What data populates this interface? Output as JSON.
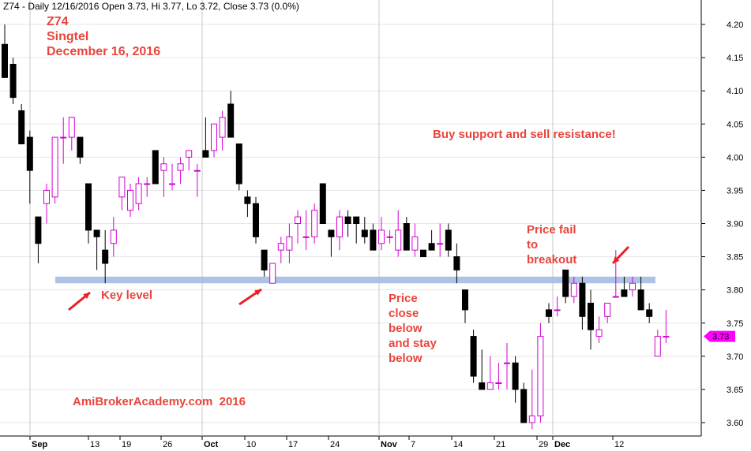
{
  "header": {
    "summary": "Z74 - Daily 12/16/2016 Open 3.73, Hi 3.77, Lo 3.72, Close 3.73 (0.0%)"
  },
  "annotations": {
    "ticker": "Z74",
    "company": "Singtel",
    "date": "December 16, 2016",
    "strategy": "Buy support and sell resistance!",
    "key_level": "Key level",
    "price_fail": "Price fail\nto\nbreakout",
    "close_below": "Price\nclose\nbelow\nand stay\nbelow",
    "watermark": "AmiBrokerAcademy.com  2016"
  },
  "last_price_label": "3.73",
  "colors": {
    "up_candle": "#d400d4",
    "down_candle": "#000000",
    "support_band": "#9fb7e0",
    "annotation": "#e8453c",
    "arrow": "#e8202a",
    "last_price_tag": "#ff00ff"
  },
  "chart_data": {
    "type": "candlestick",
    "title": "Z74 - Daily 12/16/2016 Open 3.73, Hi 3.77, Lo 3.72, Close 3.73 (0.0%)",
    "ylim": [
      3.58,
      4.21
    ],
    "y_ticks": [
      4.2,
      4.15,
      4.1,
      4.05,
      4.0,
      3.95,
      3.9,
      3.85,
      3.8,
      3.75,
      3.7,
      3.65,
      3.6
    ],
    "x_tick_labels": [
      "Sep",
      "13",
      "19",
      "26",
      "Oct",
      "10",
      "17",
      "24",
      "Nov",
      "7",
      "14",
      "21",
      "29",
      "Dec",
      "12"
    ],
    "support_level": [
      3.81,
      3.82
    ],
    "candles": [
      {
        "o": 4.17,
        "h": 4.2,
        "l": 4.12,
        "c": 4.12
      },
      {
        "o": 4.14,
        "h": 4.15,
        "l": 4.08,
        "c": 4.09
      },
      {
        "o": 4.07,
        "h": 4.08,
        "l": 4.02,
        "c": 4.02
      },
      {
        "o": 4.03,
        "h": 4.04,
        "l": 3.93,
        "c": 3.98
      },
      {
        "o": 3.91,
        "h": 3.91,
        "l": 3.84,
        "c": 3.87
      },
      {
        "o": 3.93,
        "h": 3.96,
        "l": 3.9,
        "c": 3.95
      },
      {
        "o": 3.94,
        "h": 4.03,
        "l": 3.93,
        "c": 4.03
      },
      {
        "o": 4.03,
        "h": 4.06,
        "l": 3.99,
        "c": 4.03
      },
      {
        "o": 4.03,
        "h": 4.06,
        "l": 4.01,
        "c": 4.06
      },
      {
        "o": 4.03,
        "h": 4.03,
        "l": 3.99,
        "c": 4.0
      },
      {
        "o": 3.96,
        "h": 3.96,
        "l": 3.87,
        "c": 3.89
      },
      {
        "o": 3.89,
        "h": 3.89,
        "l": 3.83,
        "c": 3.88
      },
      {
        "o": 3.86,
        "h": 3.89,
        "l": 3.81,
        "c": 3.84
      },
      {
        "o": 3.87,
        "h": 3.91,
        "l": 3.85,
        "c": 3.89
      },
      {
        "o": 3.94,
        "h": 3.97,
        "l": 3.92,
        "c": 3.97
      },
      {
        "o": 3.92,
        "h": 3.96,
        "l": 3.91,
        "c": 3.95
      },
      {
        "o": 3.93,
        "h": 3.97,
        "l": 3.92,
        "c": 3.96
      },
      {
        "o": 3.96,
        "h": 3.97,
        "l": 3.94,
        "c": 3.96
      },
      {
        "o": 4.01,
        "h": 4.01,
        "l": 3.96,
        "c": 3.96
      },
      {
        "o": 3.98,
        "h": 4.0,
        "l": 3.94,
        "c": 3.99
      },
      {
        "o": 3.96,
        "h": 3.99,
        "l": 3.95,
        "c": 3.96
      },
      {
        "o": 3.98,
        "h": 4.0,
        "l": 3.96,
        "c": 3.99
      },
      {
        "o": 4.0,
        "h": 4.01,
        "l": 3.98,
        "c": 4.01
      },
      {
        "o": 3.98,
        "h": 3.99,
        "l": 3.94,
        "c": 3.98
      },
      {
        "o": 4.01,
        "h": 4.06,
        "l": 4.0,
        "c": 4.0
      },
      {
        "o": 4.01,
        "h": 4.05,
        "l": 4.0,
        "c": 4.05
      },
      {
        "o": 4.03,
        "h": 4.07,
        "l": 4.01,
        "c": 4.06
      },
      {
        "o": 4.08,
        "h": 4.1,
        "l": 4.03,
        "c": 4.03
      },
      {
        "o": 4.02,
        "h": 4.02,
        "l": 3.95,
        "c": 3.96
      },
      {
        "o": 3.94,
        "h": 3.95,
        "l": 3.91,
        "c": 3.93
      },
      {
        "o": 3.93,
        "h": 3.94,
        "l": 3.87,
        "c": 3.88
      },
      {
        "o": 3.86,
        "h": 3.86,
        "l": 3.82,
        "c": 3.83
      },
      {
        "o": 3.81,
        "h": 3.84,
        "l": 3.81,
        "c": 3.84
      },
      {
        "o": 3.86,
        "h": 3.88,
        "l": 3.84,
        "c": 3.87
      },
      {
        "o": 3.86,
        "h": 3.9,
        "l": 3.84,
        "c": 3.88
      },
      {
        "o": 3.9,
        "h": 3.92,
        "l": 3.87,
        "c": 3.91
      },
      {
        "o": 3.88,
        "h": 3.92,
        "l": 3.86,
        "c": 3.88
      },
      {
        "o": 3.88,
        "h": 3.93,
        "l": 3.87,
        "c": 3.92
      },
      {
        "o": 3.96,
        "h": 3.96,
        "l": 3.9,
        "c": 3.9
      },
      {
        "o": 3.89,
        "h": 3.89,
        "l": 3.85,
        "c": 3.88
      },
      {
        "o": 3.88,
        "h": 3.92,
        "l": 3.86,
        "c": 3.91
      },
      {
        "o": 3.91,
        "h": 3.92,
        "l": 3.88,
        "c": 3.9
      },
      {
        "o": 3.91,
        "h": 3.91,
        "l": 3.87,
        "c": 3.9
      },
      {
        "o": 3.89,
        "h": 3.91,
        "l": 3.87,
        "c": 3.88
      },
      {
        "o": 3.89,
        "h": 3.9,
        "l": 3.86,
        "c": 3.86
      },
      {
        "o": 3.87,
        "h": 3.91,
        "l": 3.86,
        "c": 3.89
      },
      {
        "o": 3.88,
        "h": 3.89,
        "l": 3.87,
        "c": 3.88
      },
      {
        "o": 3.86,
        "h": 3.92,
        "l": 3.85,
        "c": 3.89
      },
      {
        "o": 3.9,
        "h": 3.91,
        "l": 3.86,
        "c": 3.86
      },
      {
        "o": 3.86,
        "h": 3.9,
        "l": 3.85,
        "c": 3.88
      },
      {
        "o": 3.86,
        "h": 3.86,
        "l": 3.85,
        "c": 3.85
      },
      {
        "o": 3.87,
        "h": 3.89,
        "l": 3.86,
        "c": 3.86
      },
      {
        "o": 3.87,
        "h": 3.9,
        "l": 3.85,
        "c": 3.87
      },
      {
        "o": 3.89,
        "h": 3.9,
        "l": 3.85,
        "c": 3.86
      },
      {
        "o": 3.85,
        "h": 3.87,
        "l": 3.81,
        "c": 3.83
      },
      {
        "o": 3.8,
        "h": 3.8,
        "l": 3.75,
        "c": 3.77
      },
      {
        "o": 3.73,
        "h": 3.74,
        "l": 3.66,
        "c": 3.67
      },
      {
        "o": 3.66,
        "h": 3.71,
        "l": 3.65,
        "c": 3.65
      },
      {
        "o": 3.65,
        "h": 3.7,
        "l": 3.65,
        "c": 3.66
      },
      {
        "o": 3.66,
        "h": 3.69,
        "l": 3.65,
        "c": 3.66
      },
      {
        "o": 3.69,
        "h": 3.72,
        "l": 3.65,
        "c": 3.69
      },
      {
        "o": 3.69,
        "h": 3.7,
        "l": 3.63,
        "c": 3.65
      },
      {
        "o": 3.65,
        "h": 3.66,
        "l": 3.6,
        "c": 3.6
      },
      {
        "o": 3.6,
        "h": 3.68,
        "l": 3.59,
        "c": 3.61
      },
      {
        "o": 3.61,
        "h": 3.75,
        "l": 3.6,
        "c": 3.73
      },
      {
        "o": 3.77,
        "h": 3.78,
        "l": 3.75,
        "c": 3.76
      },
      {
        "o": 3.77,
        "h": 3.79,
        "l": 3.76,
        "c": 3.77
      },
      {
        "o": 3.83,
        "h": 3.83,
        "l": 3.78,
        "c": 3.79
      },
      {
        "o": 3.79,
        "h": 3.82,
        "l": 3.78,
        "c": 3.81
      },
      {
        "o": 3.81,
        "h": 3.82,
        "l": 3.74,
        "c": 3.76
      },
      {
        "o": 3.78,
        "h": 3.8,
        "l": 3.71,
        "c": 3.74
      },
      {
        "o": 3.73,
        "h": 3.76,
        "l": 3.72,
        "c": 3.74
      },
      {
        "o": 3.76,
        "h": 3.78,
        "l": 3.75,
        "c": 3.78
      },
      {
        "o": 3.79,
        "h": 3.86,
        "l": 3.79,
        "c": 3.79
      },
      {
        "o": 3.8,
        "h": 3.82,
        "l": 3.79,
        "c": 3.79
      },
      {
        "o": 3.8,
        "h": 3.82,
        "l": 3.79,
        "c": 3.81
      },
      {
        "o": 3.8,
        "h": 3.82,
        "l": 3.77,
        "c": 3.77
      },
      {
        "o": 3.77,
        "h": 3.78,
        "l": 3.75,
        "c": 3.76
      },
      {
        "o": 3.7,
        "h": 3.74,
        "l": 3.7,
        "c": 3.73
      },
      {
        "o": 3.73,
        "h": 3.77,
        "l": 3.72,
        "c": 3.73
      }
    ]
  }
}
